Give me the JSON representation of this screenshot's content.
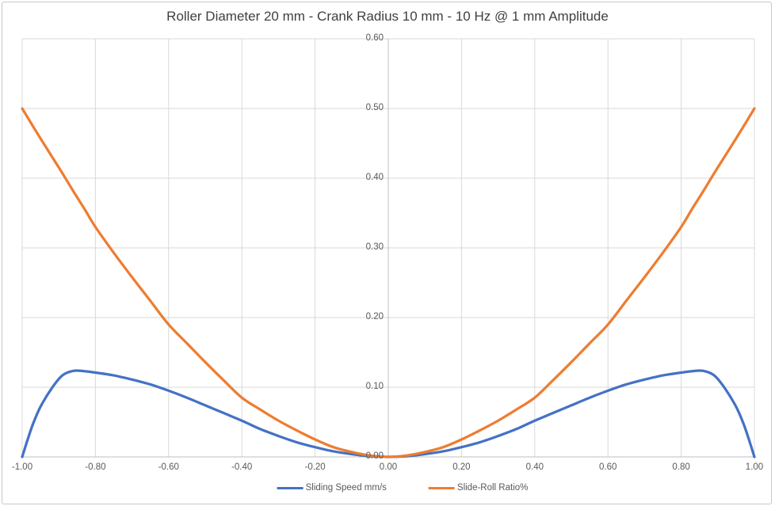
{
  "window": {
    "background": "#ffffff",
    "border_color": "#c9c9c9"
  },
  "chart_data": {
    "type": "line",
    "title": "Roller Diameter 20 mm - Crank Radius 10 mm - 10 Hz @ 1 mm Amplitude",
    "xlabel": "",
    "ylabel": "",
    "xlim": [
      -1.0,
      1.0
    ],
    "ylim": [
      0.0,
      0.6
    ],
    "grid": true,
    "legend_position": "bottom",
    "x_ticks": [
      -1.0,
      -0.8,
      -0.6,
      -0.4,
      -0.2,
      0.0,
      0.2,
      0.4,
      0.6,
      0.8,
      1.0
    ],
    "x_tick_labels": [
      "-1.00",
      "-0.80",
      "-0.60",
      "-0.40",
      "-0.20",
      "0.00",
      "0.20",
      "0.40",
      "0.60",
      "0.80",
      "1.00"
    ],
    "y_ticks": [
      0.0,
      0.1,
      0.2,
      0.3,
      0.4,
      0.5,
      0.6
    ],
    "y_tick_labels": [
      "0.00",
      "0.10",
      "0.20",
      "0.30",
      "0.40",
      "0.50",
      "0.60"
    ],
    "x": [
      -1.0,
      -0.985,
      -0.97,
      -0.95,
      -0.92,
      -0.89,
      -0.86,
      -0.83,
      -0.8,
      -0.75,
      -0.7,
      -0.65,
      -0.6,
      -0.55,
      -0.5,
      -0.45,
      -0.4,
      -0.35,
      -0.3,
      -0.25,
      -0.2,
      -0.15,
      -0.1,
      -0.05,
      0.0,
      0.05,
      0.1,
      0.15,
      0.2,
      0.25,
      0.3,
      0.35,
      0.4,
      0.45,
      0.5,
      0.55,
      0.6,
      0.65,
      0.7,
      0.75,
      0.8,
      0.83,
      0.86,
      0.89,
      0.92,
      0.95,
      0.97,
      0.985,
      1.0
    ],
    "series": [
      {
        "name": "Sliding Speed mm/s",
        "color": "#4472C4",
        "values": [
          0.0,
          0.025,
          0.048,
          0.072,
          0.098,
          0.117,
          0.1235,
          0.123,
          0.121,
          0.117,
          0.111,
          0.104,
          0.095,
          0.085,
          0.074,
          0.063,
          0.052,
          0.04,
          0.03,
          0.021,
          0.014,
          0.008,
          0.004,
          0.001,
          0.0,
          0.001,
          0.004,
          0.008,
          0.014,
          0.021,
          0.03,
          0.04,
          0.052,
          0.063,
          0.074,
          0.085,
          0.095,
          0.104,
          0.111,
          0.117,
          0.121,
          0.123,
          0.1235,
          0.117,
          0.098,
          0.072,
          0.048,
          0.025,
          0.0
        ]
      },
      {
        "name": "Slide-Roll Ratio%",
        "color": "#ED7D31",
        "values": [
          0.5,
          0.487,
          0.474,
          0.457,
          0.432,
          0.407,
          0.381,
          0.356,
          0.33,
          0.293,
          0.258,
          0.224,
          0.19,
          0.163,
          0.136,
          0.11,
          0.085,
          0.068,
          0.052,
          0.038,
          0.025,
          0.014,
          0.007,
          0.002,
          0.0,
          0.002,
          0.007,
          0.014,
          0.025,
          0.038,
          0.052,
          0.068,
          0.085,
          0.11,
          0.136,
          0.163,
          0.19,
          0.224,
          0.258,
          0.293,
          0.33,
          0.356,
          0.381,
          0.407,
          0.432,
          0.457,
          0.474,
          0.487,
          0.5
        ]
      }
    ],
    "style": {
      "gridline_color": "#D9D9D9",
      "axis_color": "#BFBFBF",
      "tick_label_color": "#595959",
      "title_color": "#3F3F3F",
      "line_width": 3.25
    }
  }
}
